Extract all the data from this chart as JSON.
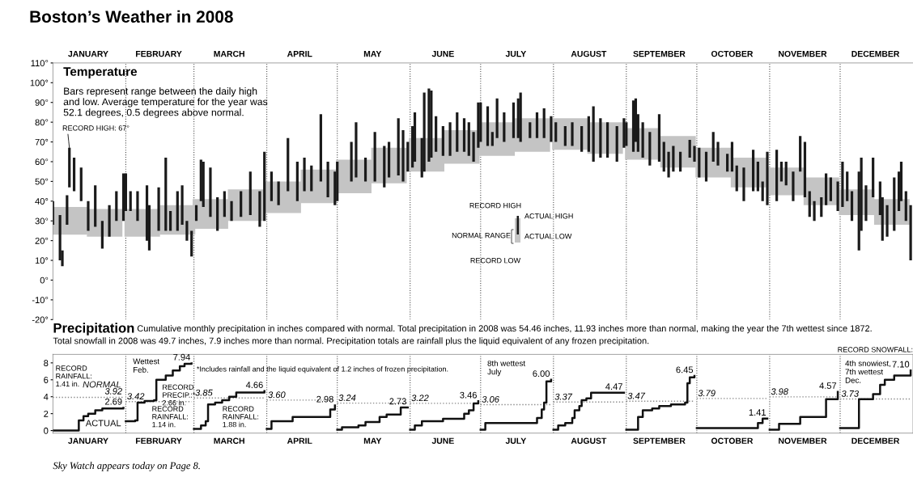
{
  "chart_data": [
    {
      "type": "bar",
      "title": "Boston’s Weather in 2008",
      "subtitle": "Temperature",
      "annotations": [
        "Bars represent range between the daily high\nand low. Average temperature for the year was\n52.1 degrees, 0.5 degrees above normal.",
        "RECORD HIGH",
        "ACTUAL HIGH",
        "NORMAL RANGE",
        "ACTUAL LOW",
        "RECORD LOW",
        {
          "text": "RECORD HIGH: 67°",
          "x": "2008-01-08",
          "y": 67
        }
      ],
      "xlim": [
        "2008-01-01",
        "2009-01-01"
      ],
      "xticks": [
        {
          "value": "2008-01-16",
          "label": "JANUARY"
        },
        {
          "value": "2008-02-15",
          "label": "FEBRUARY"
        },
        {
          "value": "2008-03-16",
          "label": "MARCH"
        },
        {
          "value": "2008-04-15",
          "label": "APRIL"
        },
        {
          "value": "2008-05-16",
          "label": "MAY"
        },
        {
          "value": "2008-06-15",
          "label": "JUNE"
        },
        {
          "value": "2008-07-16",
          "label": "JULY"
        },
        {
          "value": "2008-08-16",
          "label": "AUGUST"
        },
        {
          "value": "2008-09-15",
          "label": "SEPTEMBER"
        },
        {
          "value": "2008-10-16",
          "label": "OCTOBER"
        },
        {
          "value": "2008-11-15",
          "label": "NOVEMBER"
        },
        {
          "value": "2008-12-16",
          "label": "DECEMBER"
        }
      ],
      "ylim": [
        -20,
        110
      ],
      "yticks": [
        {
          "value": 110,
          "label": "110°"
        },
        {
          "value": 100,
          "label": "100°"
        },
        {
          "value": 90,
          "label": "90°"
        },
        {
          "value": 80,
          "label": "80°"
        },
        {
          "value": 70,
          "label": "70°"
        },
        {
          "value": 60,
          "label": "60°"
        },
        {
          "value": 50,
          "label": "50°"
        },
        {
          "value": 40,
          "label": "40°"
        },
        {
          "value": 30,
          "label": "30°"
        },
        {
          "value": 20,
          "label": "20°"
        },
        {
          "value": 10,
          "label": "10°"
        },
        {
          "value": 0,
          "label": "0°"
        },
        {
          "value": -10,
          "label": "-10°"
        },
        {
          "value": -20,
          "label": "-20°"
        }
      ],
      "ref_lines": [
        {
          "axis": "x",
          "value": "2008-02-01",
          "line_style": "dotted",
          "color": "#555555"
        },
        {
          "axis": "x",
          "value": "2008-03-01",
          "line_style": "dotted",
          "color": "#555555"
        },
        {
          "axis": "x",
          "value": "2008-04-01",
          "line_style": "dotted",
          "color": "#555555"
        },
        {
          "axis": "x",
          "value": "2008-05-01",
          "line_style": "dotted",
          "color": "#555555"
        },
        {
          "axis": "x",
          "value": "2008-06-01",
          "line_style": "dotted",
          "color": "#555555"
        },
        {
          "axis": "x",
          "value": "2008-07-01",
          "line_style": "dotted",
          "color": "#555555"
        },
        {
          "axis": "x",
          "value": "2008-08-01",
          "line_style": "dotted",
          "color": "#555555"
        },
        {
          "axis": "x",
          "value": "2008-09-01",
          "line_style": "dotted",
          "color": "#555555"
        },
        {
          "axis": "x",
          "value": "2008-10-01",
          "line_style": "dotted",
          "color": "#555555"
        },
        {
          "axis": "x",
          "value": "2008-11-01",
          "line_style": "dotted",
          "color": "#555555"
        },
        {
          "axis": "x",
          "value": "2008-12-01",
          "line_style": "dotted",
          "color": "#555555"
        }
      ],
      "series": [
        {
          "color": "#c4c4c4",
          "x": [
            "2008-01-08",
            "2008-01-23",
            "2008-02-08",
            "2008-02-23",
            "2008-03-08",
            "2008-03-23",
            "2008-04-08",
            "2008-04-23",
            "2008-05-08",
            "2008-05-23",
            "2008-06-08",
            "2008-06-23",
            "2008-07-08",
            "2008-07-23",
            "2008-08-08",
            "2008-08-23",
            "2008-09-08",
            "2008-09-23",
            "2008-10-08",
            "2008-10-23",
            "2008-11-08",
            "2008-11-23",
            "2008-12-08",
            "2008-12-23"
          ],
          "base": [
            23,
            22,
            22,
            23,
            26,
            30,
            34,
            39,
            44,
            49,
            55,
            59,
            63,
            65,
            66,
            64,
            61,
            57,
            52,
            47,
            43,
            38,
            33,
            28
          ],
          "values": [
            14,
            14,
            14,
            15,
            15,
            16,
            16,
            17,
            17,
            18,
            17,
            17,
            17,
            17,
            16,
            16,
            16,
            16,
            15,
            15,
            14,
            14,
            13,
            13
          ]
        },
        {
          "color": "#1a1a1a",
          "x": [
            "2008-01-01",
            "2008-01-04",
            "2008-01-05",
            "2008-01-07",
            "2008-01-08",
            "2008-01-10",
            "2008-01-13",
            "2008-01-16",
            "2008-01-19",
            "2008-01-22",
            "2008-01-25",
            "2008-01-28",
            "2008-01-31",
            "2008-02-01",
            "2008-02-03",
            "2008-02-06",
            "2008-02-10",
            "2008-02-11",
            "2008-02-15",
            "2008-02-18",
            "2008-02-20",
            "2008-02-23",
            "2008-02-25",
            "2008-02-27",
            "2008-02-29",
            "2008-03-02",
            "2008-03-04",
            "2008-03-05",
            "2008-03-08",
            "2008-03-11",
            "2008-03-14",
            "2008-03-17",
            "2008-03-21",
            "2008-03-25",
            "2008-03-29",
            "2008-03-31",
            "2008-04-03",
            "2008-04-06",
            "2008-04-10",
            "2008-04-14",
            "2008-04-17",
            "2008-04-20",
            "2008-04-24",
            "2008-04-27",
            "2008-04-30",
            "2008-05-01",
            "2008-05-07",
            "2008-05-09",
            "2008-05-13",
            "2008-05-17",
            "2008-05-21",
            "2008-05-23",
            "2008-05-27",
            "2008-05-29",
            "2008-05-31",
            "2008-06-02",
            "2008-06-03",
            "2008-06-06",
            "2008-06-07",
            "2008-06-09",
            "2008-06-10",
            "2008-06-12",
            "2008-06-15",
            "2008-06-18",
            "2008-06-21",
            "2008-06-24",
            "2008-06-26",
            "2008-06-28",
            "2008-06-30",
            "2008-07-01",
            "2008-07-04",
            "2008-07-06",
            "2008-07-08",
            "2008-07-11",
            "2008-07-15",
            "2008-07-17",
            "2008-07-18",
            "2008-07-22",
            "2008-07-25",
            "2008-07-28",
            "2008-07-31",
            "2008-08-02",
            "2008-08-06",
            "2008-08-09",
            "2008-08-13",
            "2008-08-16",
            "2008-08-18",
            "2008-08-21",
            "2008-08-24",
            "2008-08-28",
            "2008-08-31",
            "2008-09-01",
            "2008-09-04",
            "2008-09-05",
            "2008-09-06",
            "2008-09-08",
            "2008-09-11",
            "2008-09-15",
            "2008-09-17",
            "2008-09-19",
            "2008-09-21",
            "2008-09-24",
            "2008-09-28",
            "2008-09-30",
            "2008-10-02",
            "2008-10-05",
            "2008-10-08",
            "2008-10-10",
            "2008-10-14",
            "2008-10-16",
            "2008-10-18",
            "2008-10-21",
            "2008-10-25",
            "2008-10-27",
            "2008-10-29",
            "2008-10-31",
            "2008-11-04",
            "2008-11-06",
            "2008-11-08",
            "2008-11-11",
            "2008-11-14",
            "2008-11-16",
            "2008-11-18",
            "2008-11-20",
            "2008-11-23",
            "2008-11-25",
            "2008-11-27",
            "2008-11-30",
            "2008-12-02",
            "2008-12-04",
            "2008-12-06",
            "2008-12-09",
            "2008-12-10",
            "2008-12-12",
            "2008-12-15",
            "2008-12-18",
            "2008-12-19",
            "2008-12-21",
            "2008-12-24",
            "2008-12-26",
            "2008-12-27",
            "2008-12-29",
            "2008-12-31"
          ],
          "base": [
            28,
            10,
            7,
            28,
            47,
            45,
            40,
            25,
            27,
            16,
            22,
            30,
            30,
            35,
            35,
            30,
            20,
            15,
            25,
            25,
            25,
            25,
            28,
            20,
            12,
            30,
            40,
            37,
            32,
            25,
            32,
            30,
            32,
            33,
            27,
            30,
            40,
            38,
            45,
            40,
            45,
            45,
            50,
            42,
            38,
            40,
            50,
            52,
            50,
            50,
            47,
            52,
            53,
            50,
            55,
            57,
            60,
            52,
            55,
            60,
            62,
            65,
            63,
            63,
            65,
            65,
            63,
            60,
            67,
            70,
            68,
            68,
            72,
            70,
            72,
            72,
            70,
            72,
            72,
            72,
            70,
            70,
            68,
            68,
            65,
            65,
            60,
            62,
            62,
            60,
            67,
            68,
            65,
            70,
            65,
            62,
            58,
            60,
            55,
            52,
            55,
            55,
            62,
            60,
            52,
            50,
            60,
            58,
            55,
            55,
            45,
            40,
            45,
            45,
            40,
            38,
            40,
            50,
            48,
            40,
            55,
            42,
            32,
            30,
            32,
            38,
            40,
            35,
            37,
            40,
            30,
            15,
            25,
            30,
            42,
            33,
            20,
            22,
            25,
            35,
            40,
            30,
            10
          ],
          "values": [
            12,
            23,
            8,
            15,
            20,
            17,
            17,
            15,
            21,
            14,
            16,
            15,
            24,
            19,
            10,
            15,
            28,
            23,
            22,
            37,
            10,
            20,
            20,
            10,
            13,
            8,
            21,
            23,
            25,
            17,
            13,
            10,
            13,
            22,
            18,
            35,
            15,
            12,
            27,
            20,
            17,
            13,
            34,
            18,
            17,
            20,
            20,
            28,
            12,
            25,
            21,
            18,
            29,
            26,
            15,
            21,
            25,
            20,
            40,
            37,
            34,
            18,
            15,
            17,
            20,
            17,
            17,
            15,
            23,
            20,
            20,
            7,
            20,
            15,
            18,
            20,
            25,
            8,
            13,
            15,
            13,
            10,
            10,
            12,
            13,
            18,
            28,
            20,
            18,
            18,
            15,
            12,
            26,
            22,
            19,
            18,
            17,
            24,
            15,
            13,
            13,
            10,
            9,
            8,
            15,
            15,
            15,
            12,
            9,
            15,
            13,
            17,
            21,
            15,
            10,
            27,
            26,
            10,
            12,
            15,
            18,
            28,
            13,
            10,
            10,
            16,
            12,
            15,
            23,
            15,
            15,
            40,
            37,
            18,
            20,
            17,
            22,
            16,
            27,
            20,
            20,
            15,
            28
          ]
        }
      ]
    },
    {
      "type": "step",
      "title": "Precipitation",
      "subtitle": "Cumulative monthly precipitation in inches compared with normal. Total precipitation in 2008 was 54.46 inches, 11.93 inches more than normal, making the year the 7th wettest since 1872.\nTotal snowfall in 2008 was 49.7 inches, 7.9 inches more than normal. Precipitation totals are rainfall plus the liquid equivalent of any frozen precipitation.",
      "annotations": [
        "Sky Watch appears today on Page 8.",
        "RECORD\nRAINFALL:\n1.41 in.",
        "Wettest\nFeb.",
        "RECORD\nPRECIP.:*\n2.66 in.",
        "RECORD\nRAINFALL:\n1.14 in.",
        "*Includes rainfall and the liquid equivalent of 1.2 inches of frozen precipitation.",
        "RECORD\nRAINFALL:\n1.88 in.",
        "8th wettest\nJuly",
        "RECORD SNOWFALL:",
        "4th snowiest,\n7th wettest\nDec."
      ],
      "xlim": [
        "2008-01-01",
        "2009-01-01"
      ],
      "xticks": [
        {
          "value": "2008-01-16",
          "label": "JANUARY"
        },
        {
          "value": "2008-02-15",
          "label": "FEBRUARY"
        },
        {
          "value": "2008-03-16",
          "label": "MARCH"
        },
        {
          "value": "2008-04-15",
          "label": "APRIL"
        },
        {
          "value": "2008-05-16",
          "label": "MAY"
        },
        {
          "value": "2008-06-15",
          "label": "JUNE"
        },
        {
          "value": "2008-07-16",
          "label": "JULY"
        },
        {
          "value": "2008-08-16",
          "label": "AUGUST"
        },
        {
          "value": "2008-09-15",
          "label": "SEPTEMBER"
        },
        {
          "value": "2008-10-16",
          "label": "OCTOBER"
        },
        {
          "value": "2008-11-15",
          "label": "NOVEMBER"
        },
        {
          "value": "2008-12-16",
          "label": "DECEMBER"
        }
      ],
      "ylim": [
        -0.3,
        9.0
      ],
      "yticks": [
        0,
        2,
        4,
        6,
        8
      ],
      "ref_lines": [
        {
          "axis": "x",
          "value": "2008-02-01",
          "line_style": "dotted",
          "color": "#555555"
        },
        {
          "axis": "x",
          "value": "2008-03-01",
          "line_style": "dotted",
          "color": "#555555"
        },
        {
          "axis": "x",
          "value": "2008-04-01",
          "line_style": "dotted",
          "color": "#555555"
        },
        {
          "axis": "x",
          "value": "2008-05-01",
          "line_style": "dotted",
          "color": "#555555"
        },
        {
          "axis": "x",
          "value": "2008-06-01",
          "line_style": "dotted",
          "color": "#555555"
        },
        {
          "axis": "x",
          "value": "2008-07-01",
          "line_style": "dotted",
          "color": "#555555"
        },
        {
          "axis": "x",
          "value": "2008-08-01",
          "line_style": "dotted",
          "color": "#555555"
        },
        {
          "axis": "x",
          "value": "2008-09-01",
          "line_style": "dotted",
          "color": "#555555"
        },
        {
          "axis": "x",
          "value": "2008-10-01",
          "line_style": "dotted",
          "color": "#555555"
        },
        {
          "axis": "x",
          "value": "2008-11-01",
          "line_style": "dotted",
          "color": "#555555"
        },
        {
          "axis": "x",
          "value": "2008-12-01",
          "line_style": "dotted",
          "color": "#555555"
        }
      ],
      "series": [
        {
          "name": "NORMAL",
          "type": "line",
          "line_style": "dotted",
          "color": "#8a8a8a",
          "x": [
            "2008-01-01",
            "2008-01-31"
          ],
          "values": [
            3.92,
            3.92
          ],
          "value_labels": [
            null,
            "3.92"
          ]
        },
        {
          "type": "line",
          "line_style": "dotted",
          "color": "#8a8a8a",
          "x": [
            "2008-02-01",
            "2008-02-29"
          ],
          "values": [
            3.42,
            3.42
          ],
          "value_labels": [
            "3.42",
            null
          ]
        },
        {
          "type": "line",
          "line_style": "dotted",
          "color": "#8a8a8a",
          "x": [
            "2008-03-01",
            "2008-03-31"
          ],
          "values": [
            3.85,
            3.85
          ],
          "value_labels": [
            "3.85",
            null
          ]
        },
        {
          "type": "line",
          "line_style": "dotted",
          "color": "#8a8a8a",
          "x": [
            "2008-04-01",
            "2008-04-30"
          ],
          "values": [
            3.6,
            3.6
          ],
          "value_labels": [
            "3.60",
            null
          ]
        },
        {
          "type": "line",
          "line_style": "dotted",
          "color": "#8a8a8a",
          "x": [
            "2008-05-01",
            "2008-05-31"
          ],
          "values": [
            3.24,
            3.24
          ],
          "value_labels": [
            "3.24",
            null
          ]
        },
        {
          "type": "line",
          "line_style": "dotted",
          "color": "#8a8a8a",
          "x": [
            "2008-06-01",
            "2008-06-30"
          ],
          "values": [
            3.22,
            3.22
          ],
          "value_labels": [
            "3.22",
            null
          ]
        },
        {
          "type": "line",
          "line_style": "dotted",
          "color": "#8a8a8a",
          "x": [
            "2008-07-01",
            "2008-07-31"
          ],
          "values": [
            3.06,
            3.06
          ],
          "value_labels": [
            "3.06",
            null
          ]
        },
        {
          "type": "line",
          "line_style": "dotted",
          "color": "#8a8a8a",
          "x": [
            "2008-08-01",
            "2008-08-31"
          ],
          "values": [
            3.37,
            3.37
          ],
          "value_labels": [
            "3.37",
            null
          ]
        },
        {
          "type": "line",
          "line_style": "dotted",
          "color": "#8a8a8a",
          "x": [
            "2008-09-01",
            "2008-09-30"
          ],
          "values": [
            3.47,
            3.47
          ],
          "value_labels": [
            "3.47",
            null
          ]
        },
        {
          "type": "line",
          "line_style": "dotted",
          "color": "#8a8a8a",
          "x": [
            "2008-10-01",
            "2008-10-31"
          ],
          "values": [
            3.79,
            3.79
          ],
          "value_labels": [
            "3.79",
            null
          ]
        },
        {
          "type": "line",
          "line_style": "dotted",
          "color": "#8a8a8a",
          "x": [
            "2008-11-01",
            "2008-11-30"
          ],
          "values": [
            3.98,
            3.98
          ],
          "value_labels": [
            "3.98",
            null
          ]
        },
        {
          "type": "line",
          "line_style": "dotted",
          "color": "#8a8a8a",
          "x": [
            "2008-12-01",
            "2008-12-31"
          ],
          "values": [
            3.73,
            3.73
          ],
          "value_labels": [
            "3.73",
            null
          ]
        },
        {
          "name": "ACTUAL",
          "color": "#111111",
          "x": [
            "2008-01-01",
            "2008-01-11",
            "2008-01-12",
            "2008-01-14",
            "2008-01-16",
            "2008-01-19",
            "2008-01-22",
            "2008-01-31"
          ],
          "values": [
            0,
            0,
            1.2,
            1.7,
            2.0,
            2.4,
            2.6,
            2.69
          ],
          "value_labels": [
            null,
            null,
            null,
            null,
            null,
            null,
            null,
            "2.69"
          ]
        },
        {
          "color": "#111111",
          "x": [
            "2008-02-01",
            "2008-02-05",
            "2008-02-06",
            "2008-02-09",
            "2008-02-13",
            "2008-02-14",
            "2008-02-18",
            "2008-02-21",
            "2008-02-24",
            "2008-02-26",
            "2008-02-29"
          ],
          "values": [
            1.1,
            1.2,
            3.3,
            3.5,
            3.6,
            6.0,
            6.5,
            7.1,
            7.6,
            7.9,
            7.94
          ],
          "value_labels": [
            null,
            null,
            null,
            null,
            null,
            null,
            null,
            null,
            null,
            null,
            "7.94"
          ]
        },
        {
          "color": "#111111",
          "x": [
            "2008-03-01",
            "2008-03-04",
            "2008-03-06",
            "2008-03-07",
            "2008-03-10",
            "2008-03-13",
            "2008-03-16",
            "2008-03-19",
            "2008-03-28",
            "2008-03-31"
          ],
          "values": [
            0.2,
            0.6,
            1.1,
            3.1,
            3.3,
            3.6,
            4.0,
            4.5,
            4.5,
            4.66
          ],
          "value_labels": [
            null,
            null,
            null,
            null,
            null,
            null,
            null,
            null,
            null,
            "4.66"
          ]
        },
        {
          "color": "#111111",
          "x": [
            "2008-04-01",
            "2008-04-03",
            "2008-04-12",
            "2008-04-28",
            "2008-04-30"
          ],
          "values": [
            0.2,
            1.1,
            1.6,
            2.5,
            2.98
          ],
          "value_labels": [
            null,
            null,
            null,
            null,
            "2.98"
          ]
        },
        {
          "color": "#111111",
          "x": [
            "2008-05-01",
            "2008-05-03",
            "2008-05-10",
            "2008-05-13",
            "2008-05-19",
            "2008-05-22",
            "2008-05-28",
            "2008-05-31"
          ],
          "values": [
            0.1,
            0.4,
            0.6,
            1.0,
            1.6,
            1.9,
            2.73,
            2.73
          ],
          "value_labels": [
            null,
            null,
            null,
            null,
            null,
            null,
            null,
            "2.73"
          ]
        },
        {
          "color": "#111111",
          "x": [
            "2008-06-01",
            "2008-06-03",
            "2008-06-06",
            "2008-06-15",
            "2008-06-24",
            "2008-06-26",
            "2008-06-28",
            "2008-06-30"
          ],
          "values": [
            0.1,
            0.6,
            1.1,
            1.4,
            2.0,
            2.4,
            3.2,
            3.46
          ],
          "value_labels": [
            null,
            null,
            null,
            null,
            null,
            null,
            null,
            "3.46"
          ]
        },
        {
          "color": "#111111",
          "x": [
            "2008-07-01",
            "2008-07-03",
            "2008-07-25",
            "2008-07-27",
            "2008-07-28",
            "2008-07-29",
            "2008-07-31"
          ],
          "values": [
            0.1,
            0.9,
            1.5,
            2.5,
            3.3,
            5.8,
            6.0
          ],
          "value_labels": [
            null,
            null,
            null,
            null,
            null,
            null,
            "6.00"
          ]
        },
        {
          "color": "#111111",
          "x": [
            "2008-08-01",
            "2008-08-03",
            "2008-08-06",
            "2008-08-09",
            "2008-08-10",
            "2008-08-12",
            "2008-08-13",
            "2008-08-15",
            "2008-08-17",
            "2008-08-31"
          ],
          "values": [
            0.1,
            0.6,
            0.9,
            1.5,
            2.4,
            2.9,
            3.6,
            3.8,
            4.47,
            4.47
          ],
          "value_labels": [
            null,
            null,
            null,
            null,
            null,
            null,
            null,
            null,
            null,
            "4.47"
          ]
        },
        {
          "color": "#111111",
          "x": [
            "2008-09-01",
            "2008-09-06",
            "2008-09-08",
            "2008-09-12",
            "2008-09-15",
            "2008-09-20",
            "2008-09-26",
            "2008-09-27",
            "2008-09-28",
            "2008-09-30"
          ],
          "values": [
            0.1,
            1.6,
            2.4,
            2.6,
            2.9,
            3.1,
            3.3,
            5.6,
            6.3,
            6.45
          ],
          "value_labels": [
            null,
            null,
            null,
            null,
            null,
            null,
            null,
            null,
            null,
            "6.45"
          ]
        },
        {
          "color": "#111111",
          "x": [
            "2008-10-01",
            "2008-10-27",
            "2008-10-29",
            "2008-10-31"
          ],
          "values": [
            0.3,
            0.9,
            1.41,
            1.41
          ],
          "value_labels": [
            null,
            null,
            null,
            "1.41"
          ]
        },
        {
          "color": "#111111",
          "x": [
            "2008-11-01",
            "2008-11-05",
            "2008-11-14",
            "2008-11-25",
            "2008-11-30"
          ],
          "values": [
            0.1,
            0.8,
            1.6,
            3.7,
            4.57
          ],
          "value_labels": [
            null,
            null,
            null,
            null,
            "4.57"
          ]
        },
        {
          "color": "#111111",
          "x": [
            "2008-12-01",
            "2008-12-09",
            "2008-12-15",
            "2008-12-18",
            "2008-12-20",
            "2008-12-24",
            "2008-12-31"
          ],
          "values": [
            0.3,
            3.7,
            4.3,
            5.4,
            6.0,
            6.5,
            7.1
          ],
          "value_labels": [
            null,
            null,
            null,
            null,
            null,
            null,
            "7.10"
          ]
        }
      ]
    }
  ]
}
